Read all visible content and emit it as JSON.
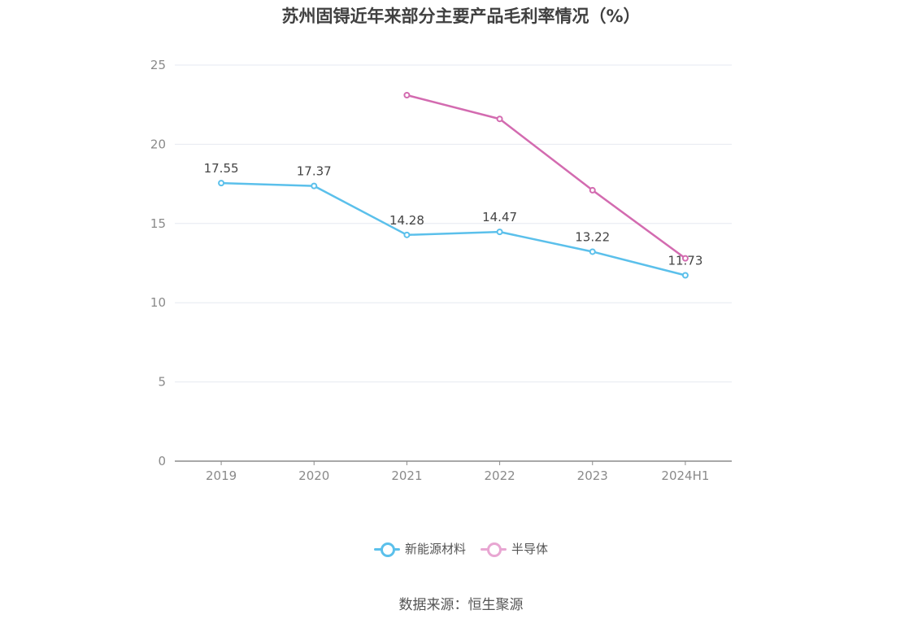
{
  "title": "苏州固锝近年来部分主要产品毛利率情况（%）",
  "source": "数据来源：恒生聚源",
  "colors": {
    "series0": "#5bc0eb",
    "series1": "#d36bb0",
    "series1_legend": "#e8a6d2",
    "grid": "#e6e9f0",
    "axis": "#8c8c8c"
  },
  "chart_data": {
    "type": "line",
    "title": "苏州固锝近年来部分主要产品毛利率情况（%）",
    "categories": [
      "2019",
      "2020",
      "2021",
      "2022",
      "2023",
      "2024H1"
    ],
    "ylim": [
      0,
      25
    ],
    "yticks": [
      0,
      5,
      10,
      15,
      20,
      25
    ],
    "grid": true,
    "legend_position": "bottom-center",
    "series": [
      {
        "name": "新能源材料",
        "values": [
          17.55,
          17.37,
          14.28,
          14.47,
          13.22,
          11.73
        ],
        "labels": [
          "17.55",
          "17.37",
          "14.28",
          "14.47",
          "13.22",
          "11.73"
        ]
      },
      {
        "name": "半导体",
        "values": [
          null,
          null,
          23.1,
          21.6,
          17.1,
          12.8
        ],
        "labels": []
      }
    ]
  }
}
